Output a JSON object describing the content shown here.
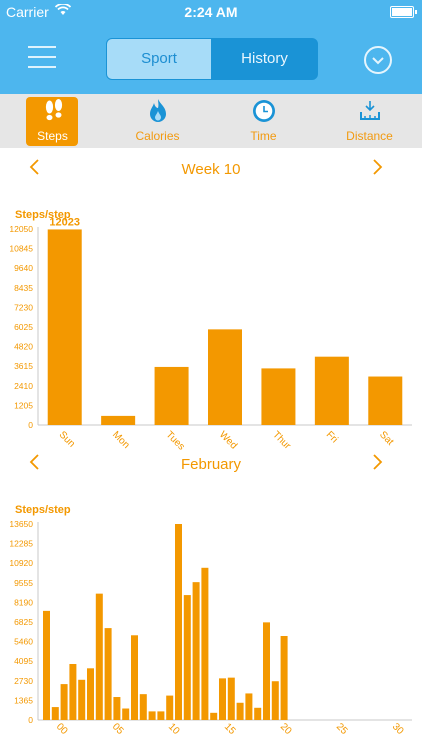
{
  "status_bar": {
    "carrier": "Carrier",
    "time": "2:24 AM"
  },
  "nav": {
    "segments": [
      "Sport",
      "History"
    ],
    "active_segment": "Sport"
  },
  "tabs": [
    {
      "label": "Steps",
      "icon": "footprints-icon",
      "active": true
    },
    {
      "label": "Calories",
      "icon": "flame-icon",
      "active": false
    },
    {
      "label": "Time",
      "icon": "clock-icon",
      "active": false
    },
    {
      "label": "Distance",
      "icon": "distance-icon",
      "active": false
    }
  ],
  "colors": {
    "accent": "#f39800",
    "header": "#4db6ee",
    "segment_active_bg": "#a7dcf8"
  },
  "week_header": {
    "title": "Week 10"
  },
  "month_header": {
    "title": "February"
  },
  "chart_data": [
    {
      "type": "bar",
      "ylabel": "Steps/step",
      "categories": [
        "Sun",
        "Mon",
        "Tues",
        "Wed",
        "Thur",
        "Fri",
        "Sat"
      ],
      "values": [
        12023,
        560,
        3570,
        5880,
        3480,
        4200,
        2980
      ],
      "data_labels": [
        "12023"
      ],
      "yticks": [
        0,
        1205,
        2410,
        3615,
        4820,
        6025,
        7230,
        8435,
        9640,
        10845,
        12050
      ],
      "ylim": [
        0,
        12050
      ]
    },
    {
      "type": "bar",
      "ylabel": "Steps/step",
      "x": [
        1,
        2,
        3,
        4,
        5,
        6,
        7,
        8,
        9,
        10,
        11,
        12,
        13,
        14,
        15,
        16,
        17,
        18,
        19,
        20,
        21,
        22,
        23,
        24,
        25,
        26,
        27,
        28
      ],
      "values": [
        7600,
        900,
        2500,
        3900,
        2800,
        3600,
        8800,
        6400,
        1600,
        800,
        5900,
        1800,
        600,
        600,
        1700,
        13650,
        8700,
        9600,
        10600,
        500,
        2900,
        2950,
        1200,
        1850,
        850,
        6800,
        2700,
        5850
      ],
      "xtick_labels": [
        "00",
        "05",
        "10",
        "15",
        "20",
        "25",
        "30"
      ],
      "yticks": [
        0,
        1365,
        2730,
        4095,
        5460,
        6825,
        8190,
        9555,
        10920,
        12285,
        13650
      ],
      "ylim": [
        0,
        13650
      ]
    }
  ]
}
